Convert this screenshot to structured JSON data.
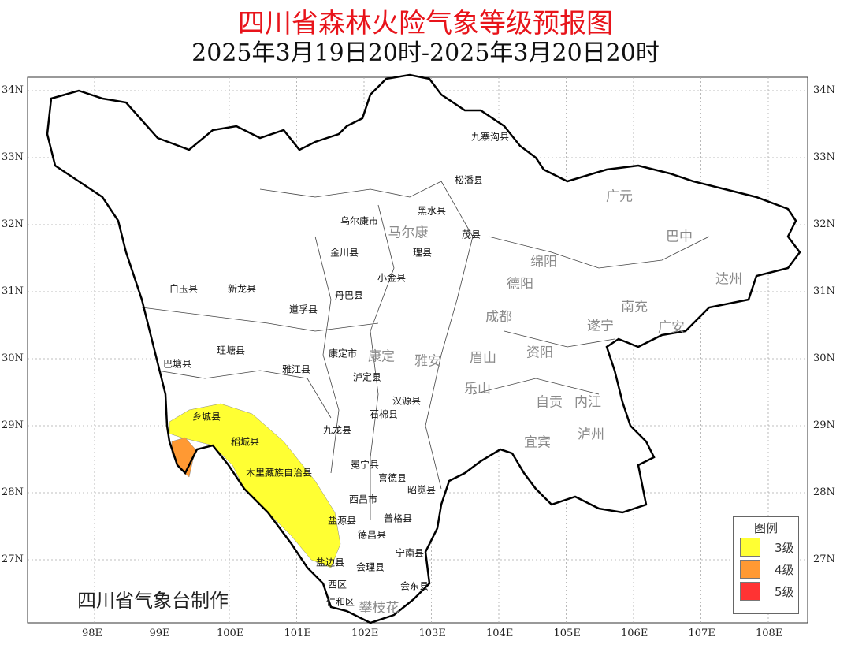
{
  "title": "四川省森林火险气象等级预报图",
  "subtitle": "2025年3月19日20时-2025年3月20日20时",
  "credit": "四川省气象台制作",
  "axes": {
    "lon_ticks": [
      "98E",
      "99E",
      "100E",
      "101E",
      "102E",
      "103E",
      "104E",
      "105E",
      "106E",
      "107E",
      "108E"
    ],
    "lat_ticks": [
      "34N",
      "33N",
      "32N",
      "31N",
      "30N",
      "29N",
      "28N",
      "27N"
    ]
  },
  "legend": {
    "title": "图例",
    "items": [
      {
        "label": "3级",
        "color": "#ffff33"
      },
      {
        "label": "4级",
        "color": "#ff9933"
      },
      {
        "label": "5级",
        "color": "#ff3333"
      }
    ]
  },
  "county_labels": [
    "九寨沟县",
    "松潘县",
    "黑水县",
    "茂县",
    "理县",
    "乌尔康市",
    "金川县",
    "小金县",
    "丹巴县",
    "白玉县",
    "新龙县",
    "道孚县",
    "理塘县",
    "巴塘县",
    "雅江县",
    "康定市",
    "泸定县",
    "汉源县",
    "石棉县",
    "九龙县",
    "乡城县",
    "稻城县",
    "木里藏族自治县",
    "冕宁县",
    "喜德县",
    "昭觉县",
    "西昌市",
    "盐源县",
    "普格县",
    "德昌县",
    "宁南县",
    "盐边县",
    "会理县",
    "会东县",
    "西区",
    "仁和区"
  ],
  "city_labels": [
    "广元",
    "巴中",
    "达州",
    "绵阳",
    "德阳",
    "南充",
    "成都",
    "遂宁",
    "广安",
    "康定",
    "雅安",
    "眉山",
    "资阳",
    "乐山",
    "自贡",
    "内江",
    "宜宾",
    "泸州",
    "马尔康",
    "攀枝花"
  ]
}
